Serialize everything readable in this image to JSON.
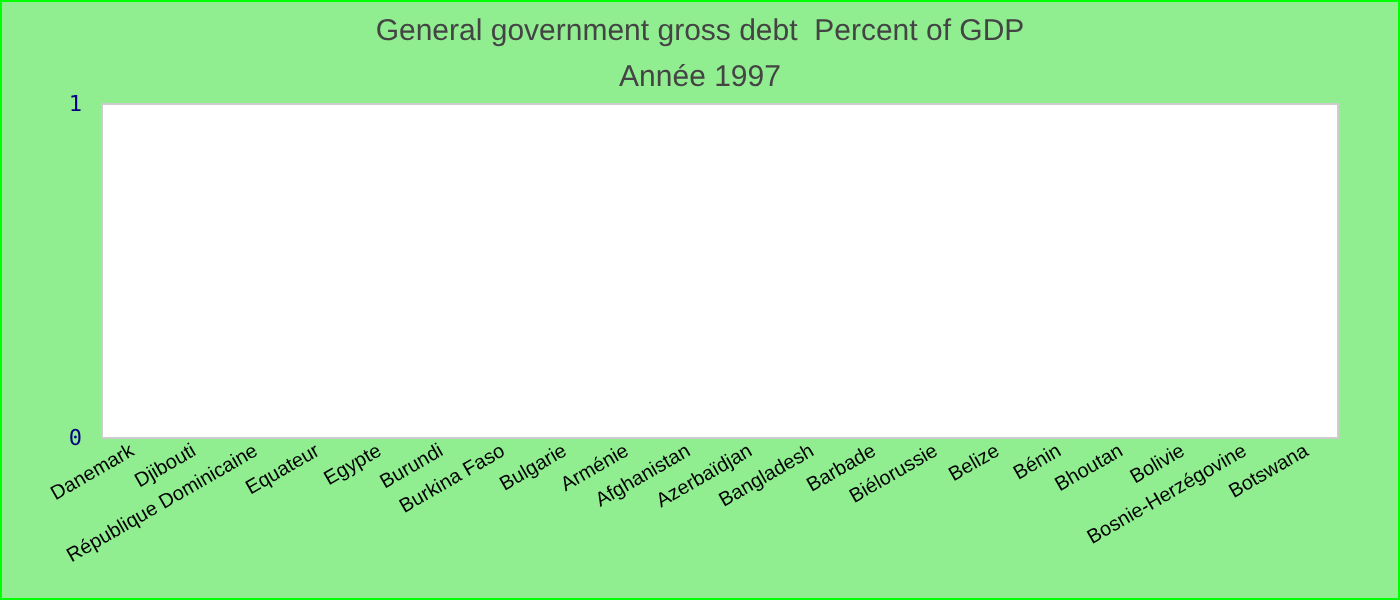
{
  "chart_data": {
    "type": "bar",
    "title": "General government gross debt  Percent of GDP",
    "subtitle": "Année 1997",
    "categories": [
      "Danemark",
      "Djibouti",
      "République Dominicaine",
      "Equateur",
      "Egypte",
      "Burundi",
      "Burkina Faso",
      "Bulgarie",
      "Arménie",
      "Afghanistan",
      "Azerbaïdjan",
      "Bangladesh",
      "Barbade",
      "Biélorussie",
      "Belize",
      "Bénin",
      "Bhoutan",
      "Bolivie",
      "Bosnie-Herzégovine",
      "Botswana"
    ],
    "values": [
      null,
      null,
      null,
      null,
      null,
      null,
      null,
      null,
      null,
      null,
      null,
      null,
      null,
      null,
      null,
      null,
      null,
      null,
      null,
      null
    ],
    "ylim": [
      0,
      1
    ],
    "yticks": [
      0,
      1
    ],
    "grid": false
  }
}
